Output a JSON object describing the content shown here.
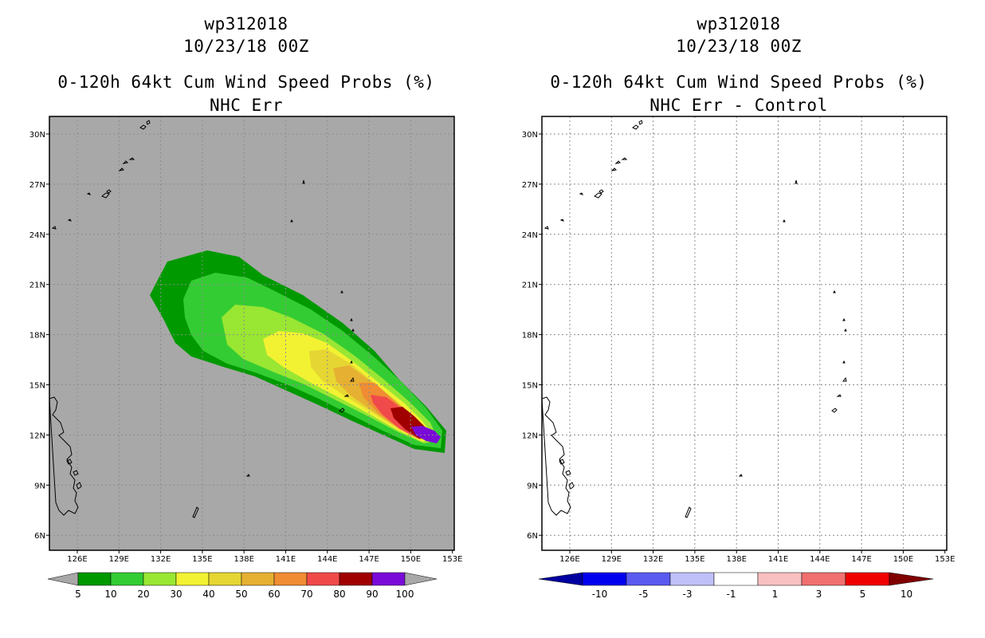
{
  "panels": [
    {
      "storm_id": "wp312018",
      "datetime": "10/23/18 00Z",
      "product": "0-120h 64kt Cum Wind Speed Probs (%)",
      "subtitle": "NHC Err",
      "colorbar": {
        "labels": [
          "5",
          "10",
          "20",
          "30",
          "40",
          "50",
          "60",
          "70",
          "80",
          "90",
          "100"
        ],
        "colors": [
          "#009900",
          "#33cc33",
          "#99e633",
          "#f2f233",
          "#e6d633",
          "#e6b033",
          "#f08c33",
          "#f04a4a",
          "#a00000",
          "#7a0ad8"
        ]
      }
    },
    {
      "storm_id": "wp312018",
      "datetime": "10/23/18 00Z",
      "product": "0-120h 64kt Cum Wind Speed Probs (%)",
      "subtitle": "NHC Err - Control",
      "colorbar": {
        "labels": [
          "-10",
          "-5",
          "-3",
          "-1",
          "1",
          "3",
          "5",
          "10"
        ],
        "colors": [
          "#0000ee",
          "#5a5af0",
          "#c0c0f8",
          "#ffffff",
          "#f8c0c0",
          "#f07070",
          "#f00000"
        ],
        "left_arrow_color": "#0000a0",
        "right_arrow_color": "#800000"
      }
    }
  ],
  "axes": {
    "lon_labels": [
      "126E",
      "129E",
      "132E",
      "135E",
      "138E",
      "141E",
      "144E",
      "147E",
      "150E",
      "153E"
    ],
    "lat_labels": [
      "30N",
      "27N",
      "24N",
      "21N",
      "18N",
      "15N",
      "12N",
      "9N",
      "6N"
    ]
  },
  "colors": {
    "land_gray": "#a8a8a8",
    "grid": "#8c8c8c"
  }
}
